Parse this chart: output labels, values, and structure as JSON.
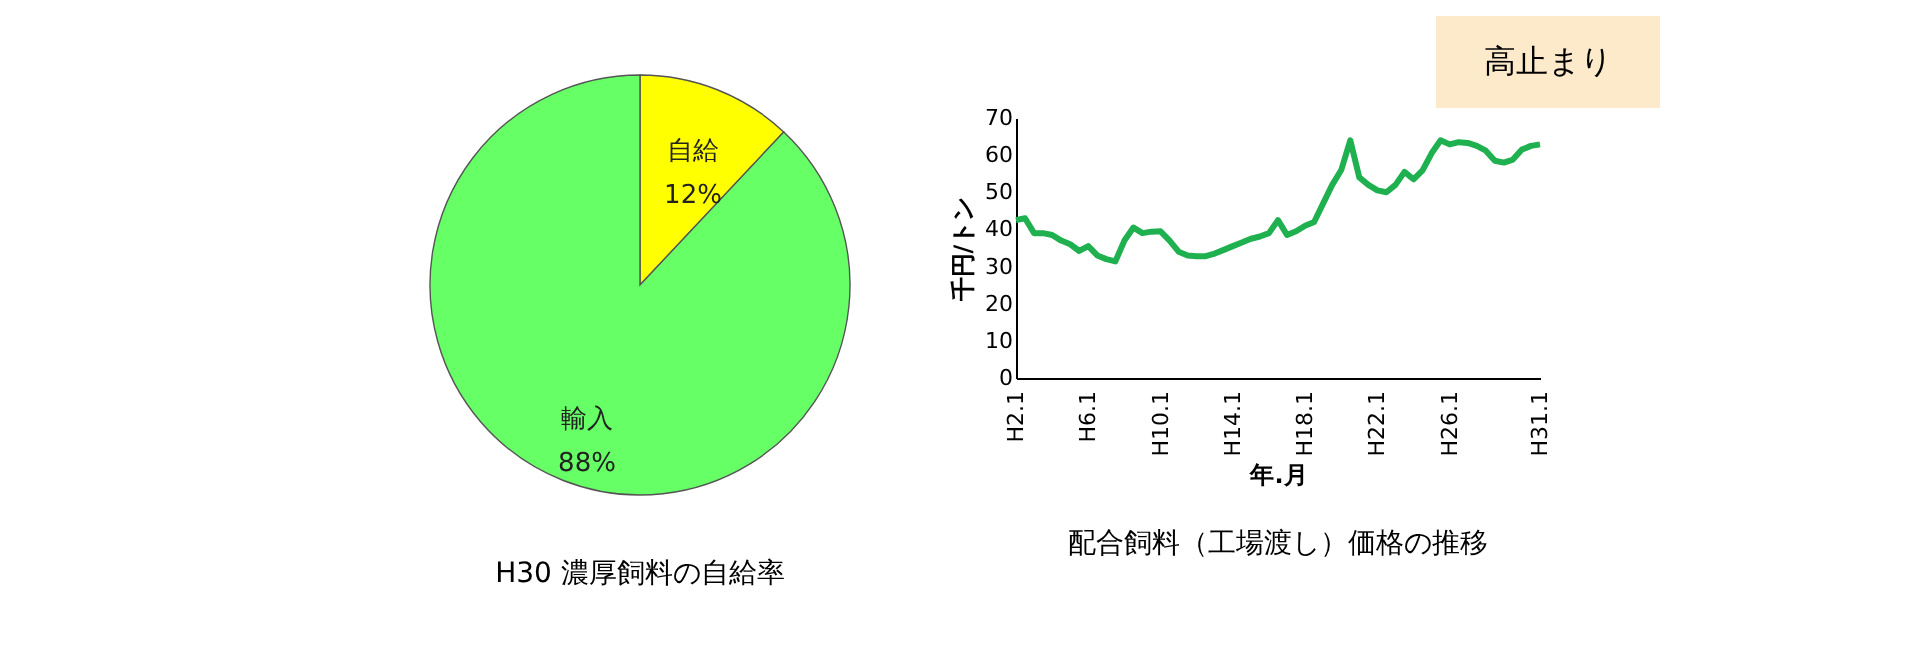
{
  "chart_data": [
    {
      "type": "pie",
      "title": "H30 濃厚飼料の自給率",
      "categories": [
        "自給",
        "輸入"
      ],
      "values": [
        12,
        88
      ],
      "colors": [
        "#ffff00",
        "#66ff66"
      ],
      "value_labels": [
        "12%",
        "88%"
      ]
    },
    {
      "type": "line",
      "title": "配合飼料（工場渡し）価格の推移",
      "xlabel": "年.月",
      "ylabel": "千円/トン",
      "annotations": [
        "高止まり"
      ],
      "categories": [
        "H2.1",
        null,
        null,
        null,
        null,
        null,
        null,
        null,
        "H6.1",
        null,
        null,
        null,
        null,
        null,
        null,
        null,
        "H10.1",
        null,
        null,
        null,
        null,
        null,
        null,
        null,
        "H14.1",
        null,
        null,
        null,
        null,
        null,
        null,
        null,
        "H18.1",
        null,
        null,
        null,
        null,
        null,
        null,
        null,
        "H22.1",
        null,
        null,
        null,
        null,
        null,
        null,
        null,
        "H26.1",
        null,
        null,
        null,
        null,
        null,
        null,
        null,
        null,
        null,
        "H31.1"
      ],
      "series": [
        {
          "color": "#1fb050",
          "values": [
            42.5,
            43,
            39,
            39,
            38.5,
            37,
            36,
            34.2,
            35.5,
            33,
            32,
            31.4,
            37,
            40.5,
            39,
            39.4,
            39.5,
            37,
            34,
            33,
            32.8,
            32.8,
            33.5,
            34.5,
            35.5,
            36.5,
            37.5,
            38.1,
            39,
            42.5,
            38.5,
            39.5,
            41,
            42,
            47,
            52,
            56,
            64,
            54,
            52,
            50.5,
            50,
            52,
            55.5,
            53.5,
            55.9,
            60.5,
            64,
            62.9,
            63.5,
            63.3,
            62.5,
            61.2,
            58.5,
            58,
            58.8,
            61.5,
            62.5,
            62.9
          ]
        }
      ],
      "ylim": [
        0,
        70
      ],
      "yticks": [
        0,
        10,
        20,
        30,
        40,
        50,
        60,
        70
      ],
      "grid": false,
      "legend": false,
      "marker": "none",
      "line_style": "solid"
    }
  ]
}
